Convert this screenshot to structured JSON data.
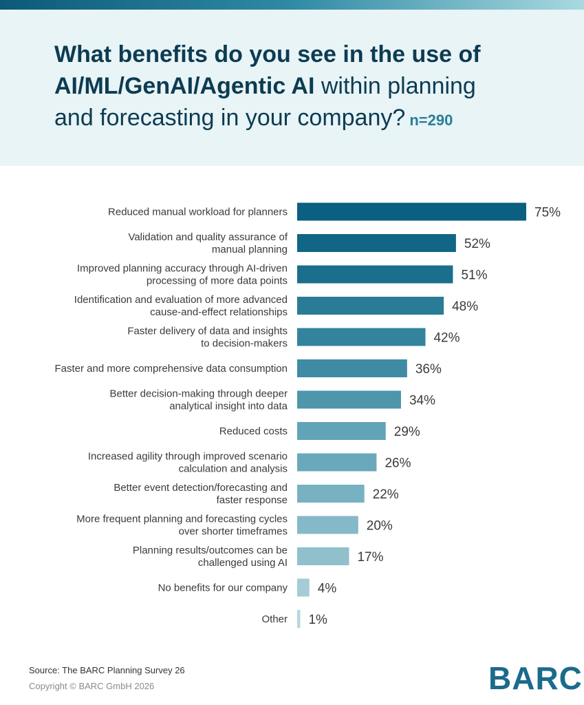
{
  "header": {
    "title_bold_1": "What benefits do you see in the use of",
    "title_bold_2": "AI/ML/GenAI/Agentic AI",
    "title_regular_2": "within planning",
    "title_regular_3": "and forecasting in your company?",
    "sample_size": "n=290"
  },
  "chart_data": {
    "type": "bar",
    "orientation": "horizontal",
    "categories": [
      [
        "Reduced manual workload for planners"
      ],
      [
        "Validation and quality assurance of",
        "manual planning"
      ],
      [
        "Improved planning accuracy through AI-driven",
        "processing of more data points"
      ],
      [
        "Identification and evaluation of more advanced",
        "cause-and-effect relationships"
      ],
      [
        "Faster delivery of data and insights",
        "to decision-makers"
      ],
      [
        "Faster and more comprehensive data consumption"
      ],
      [
        "Better decision-making through deeper",
        "analytical insight into data"
      ],
      [
        "Reduced costs"
      ],
      [
        "Increased agility through improved scenario",
        "calculation and analysis"
      ],
      [
        "Better event detection/forecasting and",
        "faster response"
      ],
      [
        "More frequent planning and forecasting cycles",
        "over shorter timeframes"
      ],
      [
        "Planning results/outcomes can be",
        "challenged using AI"
      ],
      [
        "No benefits for our company"
      ],
      [
        "Other"
      ]
    ],
    "values": [
      75,
      52,
      51,
      48,
      42,
      36,
      34,
      29,
      26,
      22,
      20,
      17,
      4,
      1
    ],
    "value_suffix": "%",
    "colors": [
      "#0b5f80",
      "#106684",
      "#1a6f8c",
      "#2a7b95",
      "#34839c",
      "#3f8ba3",
      "#4e96ac",
      "#61a4b7",
      "#6aa9bb",
      "#78b1c2",
      "#85b9c8",
      "#91c0cd",
      "#a3ccd6",
      "#b5d6de"
    ]
  },
  "footer": {
    "source": "Source: The BARC Planning Survey 26",
    "copyright": "Copyright © BARC GmbH 2026"
  },
  "logo": {
    "text": "BARC"
  }
}
